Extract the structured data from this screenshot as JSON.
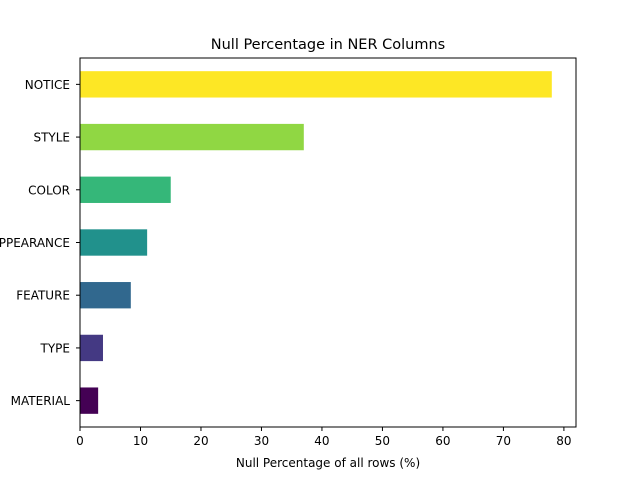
{
  "chart_data": {
    "type": "bar",
    "orientation": "horizontal",
    "title": "Null Percentage in NER Columns",
    "xlabel": "Null Percentage of all rows (%)",
    "ylabel": "",
    "categories": [
      "MATERIAL",
      "TYPE",
      "FEATURE",
      "APPEARANCE",
      "COLOR",
      "STYLE",
      "NOTICE"
    ],
    "values": [
      3.0,
      3.8,
      8.4,
      11.1,
      15.0,
      37.0,
      78.0
    ],
    "colors": [
      "#440154",
      "#443983",
      "#31688e",
      "#21918c",
      "#35b779",
      "#90d743",
      "#fde725"
    ],
    "xlim": [
      0,
      82
    ],
    "xticks": [
      0,
      10,
      20,
      30,
      40,
      50,
      60,
      70,
      80
    ],
    "grid": false,
    "legend": "none"
  }
}
